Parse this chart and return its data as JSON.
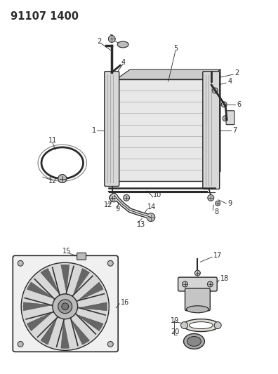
{
  "title": "91107 1400",
  "bg": "#ffffff",
  "lc": "#2a2a2a",
  "lc_light": "#555555",
  "gray_light": "#d8d8d8",
  "gray_mid": "#bbbbbb",
  "gray_dark": "#888888",
  "fs": 7.0,
  "fs_title": 10.5,
  "lw": 0.8,
  "fig_w": 3.96,
  "fig_h": 5.33,
  "dpi": 100
}
